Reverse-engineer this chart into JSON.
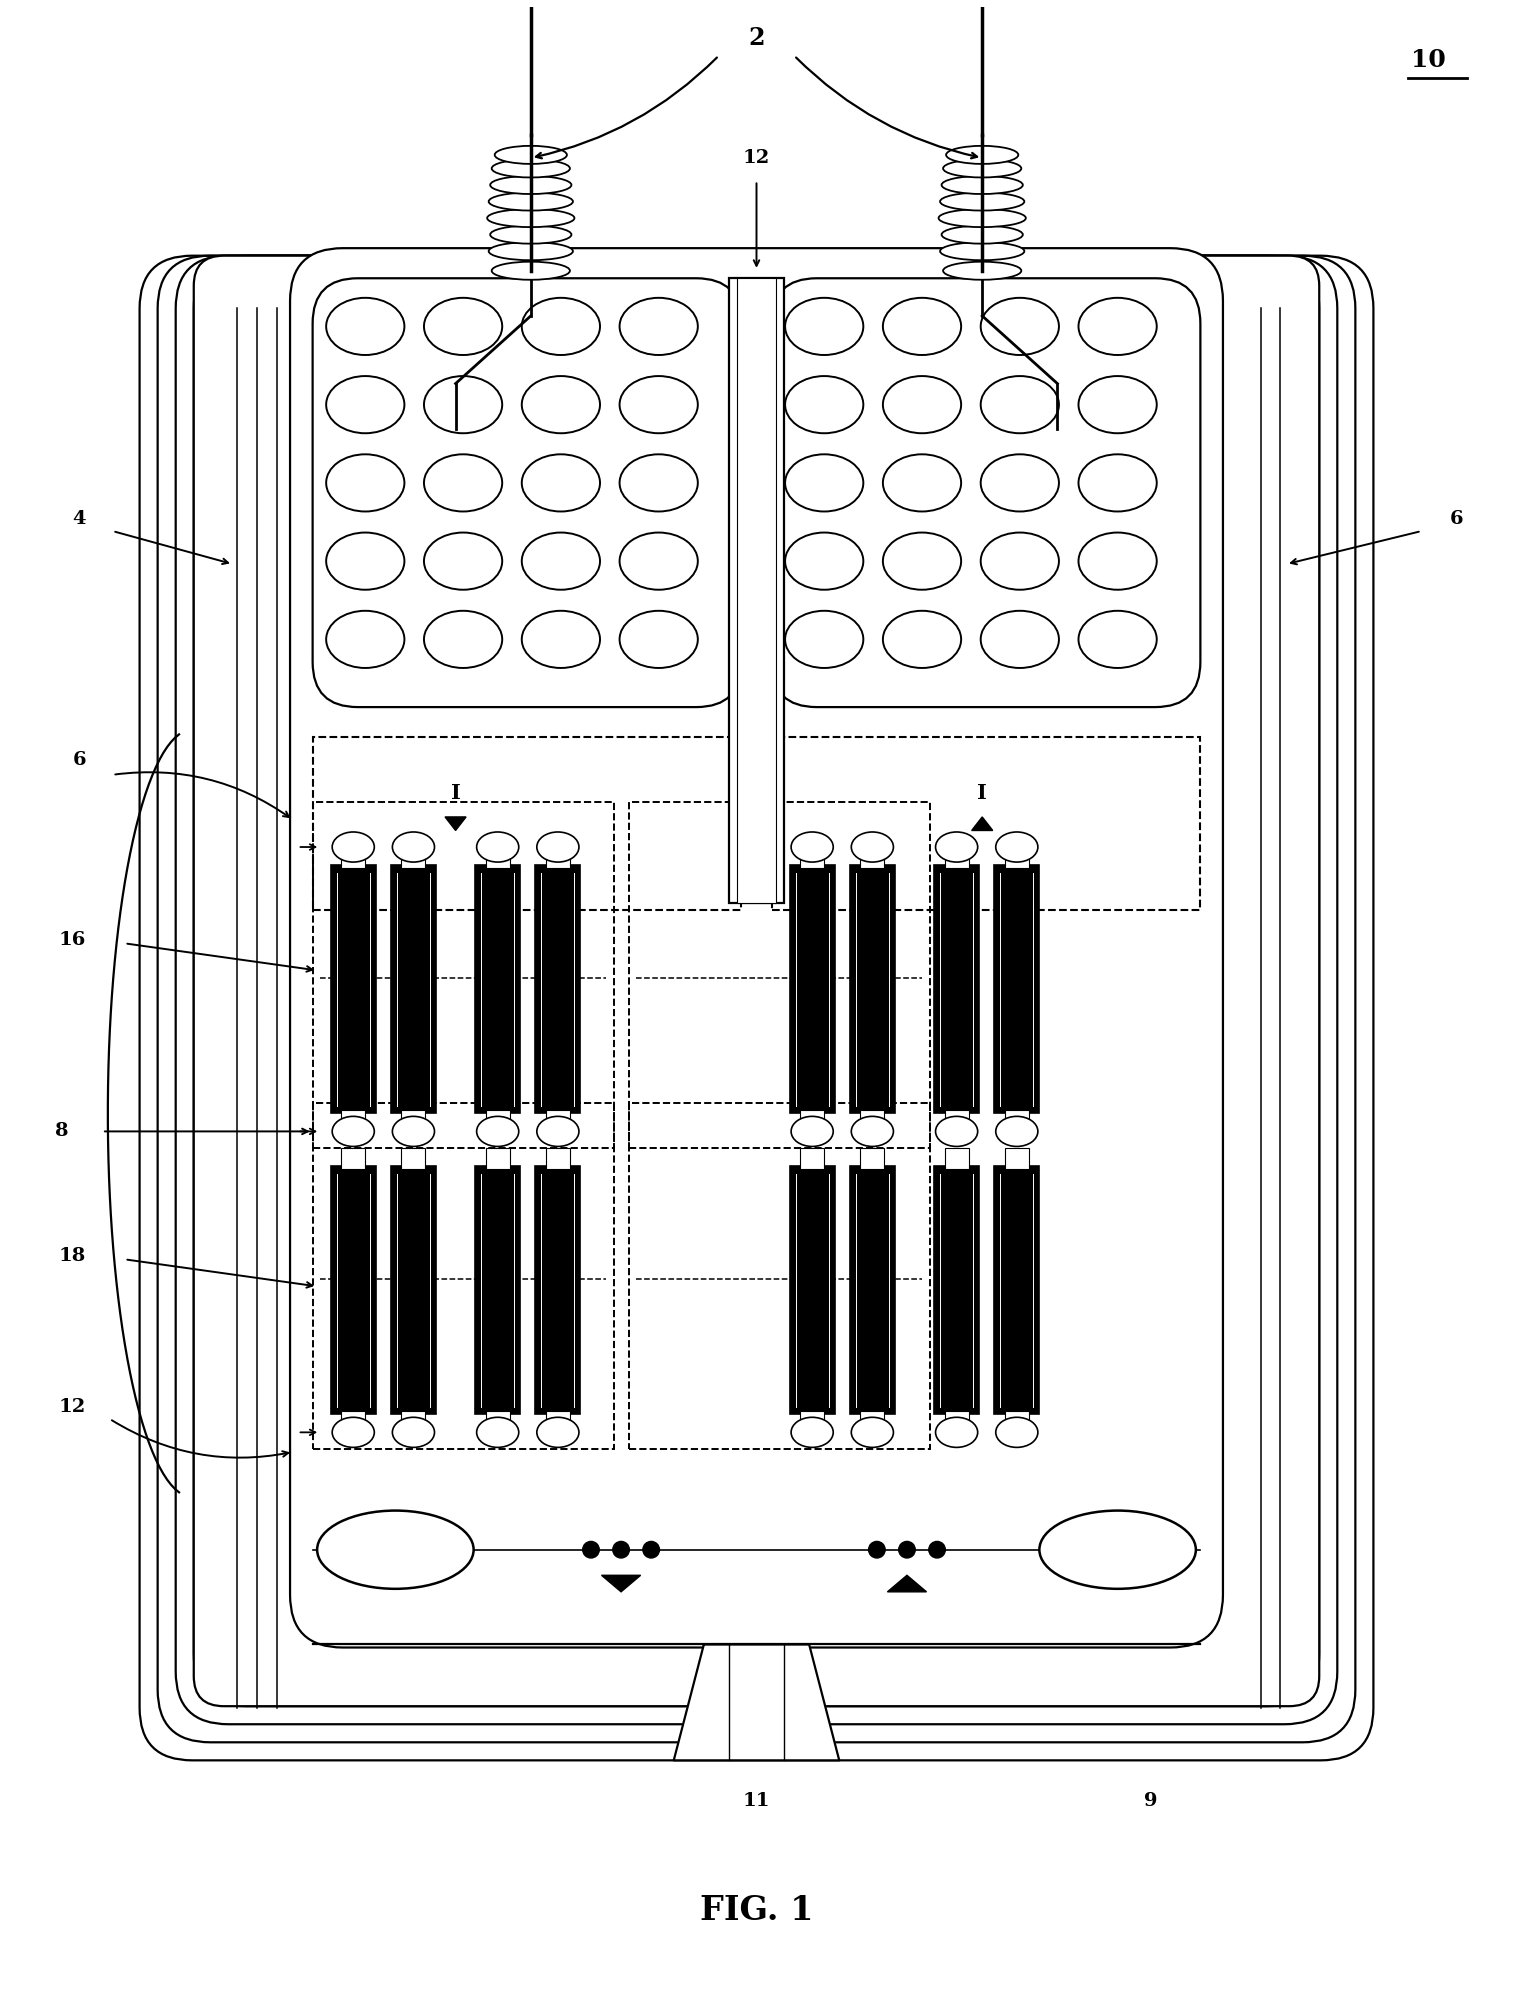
{
  "title": "FIG. 1",
  "label_10": "10",
  "label_2": "2",
  "label_4": "4",
  "label_6_right": "6",
  "label_6_left": "6",
  "label_8": "8",
  "label_9": "9",
  "label_11": "11",
  "label_12_top": "12",
  "label_12_bottom": "12",
  "label_16": "16",
  "label_18": "18",
  "bg_color": "#ffffff",
  "line_color": "#000000",
  "fig_width": 15.13,
  "fig_height": 20.01
}
